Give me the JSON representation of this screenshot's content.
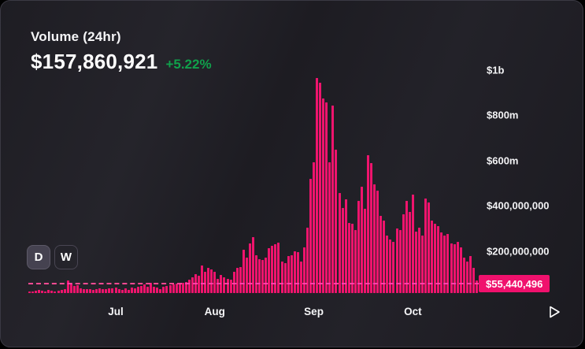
{
  "header": {
    "title": "Volume (24hr)",
    "value": "$157,860,921",
    "change": "+5.22%",
    "change_color": "#10a04b"
  },
  "controls": {
    "day_label": "D",
    "week_label": "W",
    "selected": "D"
  },
  "icons": {
    "next_arrow": "play-triangle-outline"
  },
  "colors": {
    "bar": "#ef146d",
    "badge": "#f0116d",
    "current_line": "#ff2e7e",
    "card_border": "#3a3943",
    "background": "#1d1c22"
  },
  "current_marker": {
    "label": "$55,440,496",
    "value_musd": 55.44
  },
  "chart_data": {
    "type": "bar",
    "title": "Volume (24hr)",
    "unit": "USD millions",
    "ylim_musd": [
      0,
      1000
    ],
    "grid": false,
    "legend": "none",
    "x_labels": [
      "Jul",
      "Aug",
      "Sep",
      "Oct"
    ],
    "y_ticks": [
      {
        "label": "$1b",
        "value_musd": 1000
      },
      {
        "label": "$800m",
        "value_musd": 800
      },
      {
        "label": "$600m",
        "value_musd": 600
      },
      {
        "label": "$400,000,000",
        "value_musd": 400
      },
      {
        "label": "$200,000,000",
        "value_musd": 200
      }
    ],
    "values_musd": [
      8,
      7,
      9,
      14,
      10,
      7,
      14,
      10,
      7,
      10,
      14,
      17,
      56,
      42,
      31,
      35,
      20,
      17,
      17,
      17,
      14,
      17,
      20,
      17,
      17,
      20,
      20,
      24,
      17,
      14,
      21,
      14,
      24,
      21,
      28,
      31,
      38,
      28,
      45,
      28,
      24,
      17,
      28,
      31,
      35,
      38,
      42,
      42,
      45,
      49,
      59,
      70,
      84,
      76,
      122,
      94,
      111,
      104,
      94,
      63,
      80,
      70,
      63,
      58,
      93,
      110,
      116,
      191,
      157,
      220,
      247,
      168,
      150,
      145,
      157,
      197,
      209,
      215,
      224,
      139,
      133,
      163,
      168,
      185,
      180,
      139,
      202,
      290,
      505,
      580,
      950,
      930,
      862,
      845,
      580,
      830,
      635,
      442,
      375,
      415,
      310,
      306,
      278,
      407,
      470,
      372,
      610,
      575,
      480,
      453,
      341,
      320,
      254,
      237,
      226,
      285,
      278,
      348,
      407,
      358,
      435,
      271,
      290,
      254,
      417,
      400,
      320,
      306,
      296,
      268,
      254,
      261,
      219,
      216,
      226,
      202,
      157,
      139,
      163,
      111,
      55
    ]
  }
}
